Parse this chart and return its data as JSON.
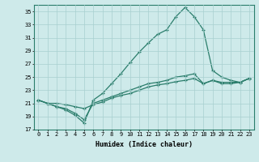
{
  "xlabel": "Humidex (Indice chaleur)",
  "bg_color": "#ceeaea",
  "grid_color": "#a8d0d0",
  "line_color": "#2a7d6b",
  "xlim": [
    -0.5,
    23.5
  ],
  "ylim": [
    17,
    36
  ],
  "yticks": [
    17,
    19,
    21,
    23,
    25,
    27,
    29,
    31,
    33,
    35
  ],
  "xticks": [
    0,
    1,
    2,
    3,
    4,
    5,
    6,
    7,
    8,
    9,
    10,
    11,
    12,
    13,
    14,
    15,
    16,
    17,
    18,
    19,
    20,
    21,
    22,
    23
  ],
  "line1_x": [
    0,
    1,
    2,
    3,
    4,
    5,
    6,
    7,
    8,
    9,
    10,
    11,
    12,
    13,
    14,
    15,
    16,
    17,
    18,
    19,
    20,
    21,
    22,
    23
  ],
  "line1_y": [
    21.5,
    21.0,
    20.5,
    20.0,
    19.2,
    18.0,
    21.5,
    22.5,
    24.0,
    25.5,
    27.2,
    28.8,
    30.2,
    31.5,
    32.2,
    34.2,
    35.6,
    34.2,
    32.2,
    26.0,
    25.0,
    24.5,
    24.2,
    24.8
  ],
  "line2_x": [
    0,
    1,
    2,
    3,
    4,
    5,
    6,
    7,
    8,
    9,
    10,
    11,
    12,
    13,
    14,
    15,
    16,
    17,
    18,
    19,
    20,
    21,
    22,
    23
  ],
  "line2_y": [
    21.5,
    21.0,
    20.5,
    20.2,
    19.5,
    18.5,
    21.0,
    21.5,
    22.0,
    22.5,
    23.0,
    23.5,
    24.0,
    24.2,
    24.5,
    25.0,
    25.2,
    25.5,
    24.0,
    24.5,
    24.0,
    24.0,
    24.2,
    24.8
  ],
  "line3_x": [
    0,
    1,
    2,
    3,
    4,
    5,
    6,
    7,
    8,
    9,
    10,
    11,
    12,
    13,
    14,
    15,
    16,
    17,
    18,
    19,
    20,
    21,
    22,
    23
  ],
  "line3_y": [
    21.5,
    21.0,
    21.0,
    20.8,
    20.5,
    20.2,
    20.8,
    21.2,
    21.8,
    22.2,
    22.5,
    23.0,
    23.5,
    23.8,
    24.0,
    24.3,
    24.5,
    24.8,
    24.0,
    24.5,
    24.2,
    24.2,
    24.2,
    24.8
  ]
}
